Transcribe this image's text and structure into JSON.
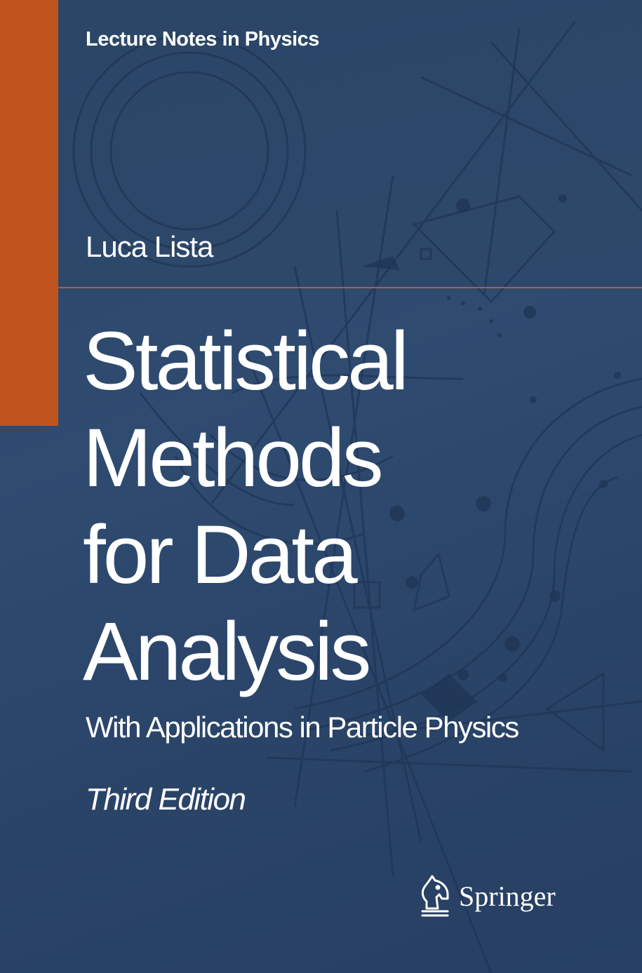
{
  "cover": {
    "series": "Lecture Notes in Physics",
    "author": "Luca Lista",
    "title_lines": [
      "Statistical",
      "Methods",
      "for Data",
      "Analysis"
    ],
    "subtitle": "With Applications in Particle Physics",
    "edition": "Third Edition",
    "publisher": "Springer",
    "publisher_logo_icon": "chess-knight-icon"
  },
  "colors": {
    "background": "#2c4668",
    "accent_bar": "#c0541f",
    "divider": "#b65a3a",
    "text": "#ffffff"
  }
}
